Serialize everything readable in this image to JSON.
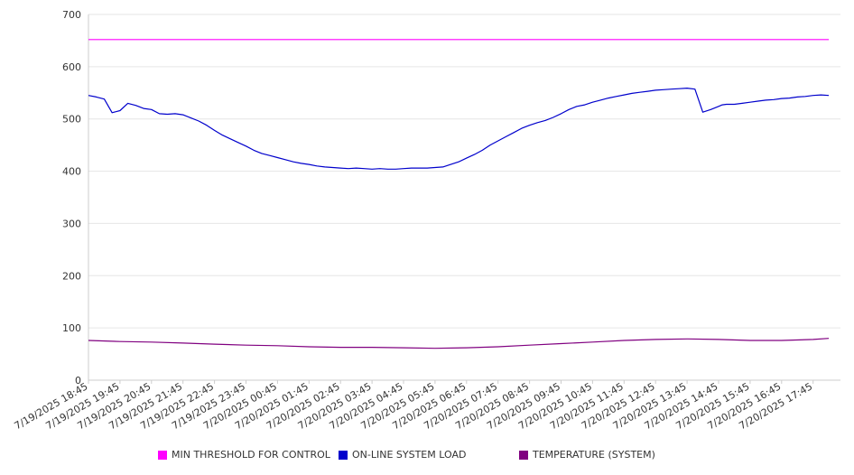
{
  "chart_data": {
    "type": "line",
    "ylim": [
      0,
      700
    ],
    "yticks": [
      0,
      100,
      200,
      300,
      400,
      500,
      600,
      700
    ],
    "x_tick_labels": [
      "7/19/2025 18:45",
      "7/19/2025 19:45",
      "7/19/2025 20:45",
      "7/19/2025 21:45",
      "7/19/2025 22:45",
      "7/19/2025 23:45",
      "7/20/2025 00:45",
      "7/20/2025 01:45",
      "7/20/2025 02:45",
      "7/20/2025 03:45",
      "7/20/2025 04:45",
      "7/20/2025 05:45",
      "7/20/2025 06:45",
      "7/20/2025 07:45",
      "7/20/2025 08:45",
      "7/20/2025 09:45",
      "7/20/2025 10:45",
      "7/20/2025 11:45",
      "7/20/2025 12:45",
      "7/20/2025 13:45",
      "7/20/2025 14:45",
      "7/20/2025 15:45",
      "7/20/2025 16:45",
      "7/20/2025 17:45"
    ],
    "grid": true,
    "legend_position": "bottom",
    "series": [
      {
        "name": "MIN THRESHOLD FOR CONTROL",
        "color": "#FF00FF",
        "x": [
          "7/19/2025 18:45",
          "7/20/2025 18:15"
        ],
        "values": [
          652,
          652
        ]
      },
      {
        "name": "ON-LINE SYSTEM LOAD",
        "color": "#0000CC",
        "x": [
          "7/19/2025 18:45",
          "7/19/2025 19:00",
          "7/19/2025 19:15",
          "7/19/2025 19:30",
          "7/19/2025 19:45",
          "7/19/2025 20:00",
          "7/19/2025 20:15",
          "7/19/2025 20:30",
          "7/19/2025 20:45",
          "7/19/2025 21:00",
          "7/19/2025 21:15",
          "7/19/2025 21:30",
          "7/19/2025 21:45",
          "7/19/2025 22:00",
          "7/19/2025 22:15",
          "7/19/2025 22:30",
          "7/19/2025 22:45",
          "7/19/2025 23:00",
          "7/19/2025 23:15",
          "7/19/2025 23:30",
          "7/19/2025 23:45",
          "7/20/2025 00:00",
          "7/20/2025 00:15",
          "7/20/2025 00:30",
          "7/20/2025 00:45",
          "7/20/2025 01:00",
          "7/20/2025 01:15",
          "7/20/2025 01:30",
          "7/20/2025 01:45",
          "7/20/2025 02:00",
          "7/20/2025 02:15",
          "7/20/2025 02:30",
          "7/20/2025 02:45",
          "7/20/2025 03:00",
          "7/20/2025 03:15",
          "7/20/2025 03:30",
          "7/20/2025 03:45",
          "7/20/2025 04:00",
          "7/20/2025 04:15",
          "7/20/2025 04:30",
          "7/20/2025 04:45",
          "7/20/2025 05:00",
          "7/20/2025 05:15",
          "7/20/2025 05:30",
          "7/20/2025 05:45",
          "7/20/2025 06:00",
          "7/20/2025 06:15",
          "7/20/2025 06:30",
          "7/20/2025 06:45",
          "7/20/2025 07:00",
          "7/20/2025 07:15",
          "7/20/2025 07:30",
          "7/20/2025 07:45",
          "7/20/2025 08:00",
          "7/20/2025 08:15",
          "7/20/2025 08:30",
          "7/20/2025 08:45",
          "7/20/2025 09:00",
          "7/20/2025 09:15",
          "7/20/2025 09:30",
          "7/20/2025 09:45",
          "7/20/2025 10:00",
          "7/20/2025 10:15",
          "7/20/2025 10:30",
          "7/20/2025 10:45",
          "7/20/2025 11:00",
          "7/20/2025 11:15",
          "7/20/2025 11:30",
          "7/20/2025 11:45",
          "7/20/2025 12:00",
          "7/20/2025 12:15",
          "7/20/2025 12:30",
          "7/20/2025 12:45",
          "7/20/2025 13:00",
          "7/20/2025 13:15",
          "7/20/2025 13:30",
          "7/20/2025 13:45",
          "7/20/2025 14:00",
          "7/20/2025 14:15",
          "7/20/2025 14:30",
          "7/20/2025 14:45",
          "7/20/2025 14:52",
          "7/20/2025 15:00",
          "7/20/2025 15:15",
          "7/20/2025 15:30",
          "7/20/2025 15:45",
          "7/20/2025 16:00",
          "7/20/2025 16:15",
          "7/20/2025 16:30",
          "7/20/2025 16:45",
          "7/20/2025 17:00",
          "7/20/2025 17:15",
          "7/20/2025 17:30",
          "7/20/2025 17:45",
          "7/20/2025 18:00",
          "7/20/2025 18:15"
        ],
        "values": [
          545,
          542,
          538,
          512,
          516,
          530,
          526,
          520,
          518,
          510,
          509,
          510,
          508,
          502,
          496,
          488,
          478,
          469,
          462,
          455,
          448,
          440,
          434,
          430,
          426,
          422,
          418,
          415,
          413,
          410,
          408,
          407,
          406,
          405,
          406,
          405,
          404,
          405,
          404,
          404,
          405,
          406,
          406,
          406,
          407,
          408,
          413,
          418,
          425,
          432,
          440,
          450,
          458,
          466,
          474,
          482,
          488,
          493,
          497,
          503,
          510,
          518,
          524,
          527,
          532,
          536,
          540,
          543,
          546,
          549,
          551,
          553,
          555,
          556,
          557,
          558,
          559,
          557,
          513,
          518,
          524,
          527,
          528,
          528,
          530,
          532,
          534,
          536,
          537,
          539,
          540,
          542,
          543,
          545,
          546,
          545
        ]
      },
      {
        "name": "TEMPERATURE (SYSTEM)",
        "color": "#800080",
        "x": [
          "7/19/2025 18:45",
          "7/19/2025 19:45",
          "7/19/2025 20:45",
          "7/19/2025 21:45",
          "7/19/2025 22:45",
          "7/19/2025 23:45",
          "7/20/2025 00:45",
          "7/20/2025 01:45",
          "7/20/2025 02:45",
          "7/20/2025 03:45",
          "7/20/2025 04:45",
          "7/20/2025 05:45",
          "7/20/2025 06:45",
          "7/20/2025 07:45",
          "7/20/2025 08:45",
          "7/20/2025 09:45",
          "7/20/2025 10:45",
          "7/20/2025 11:45",
          "7/20/2025 12:45",
          "7/20/2025 13:45",
          "7/20/2025 14:45",
          "7/20/2025 15:45",
          "7/20/2025 16:45",
          "7/20/2025 17:45",
          "7/20/2025 18:15"
        ],
        "values": [
          76,
          74,
          73,
          71,
          69,
          67,
          66,
          64,
          63,
          63,
          62,
          61,
          62,
          64,
          67,
          70,
          73,
          76,
          78,
          79,
          78,
          76,
          76,
          78,
          80
        ]
      }
    ]
  }
}
